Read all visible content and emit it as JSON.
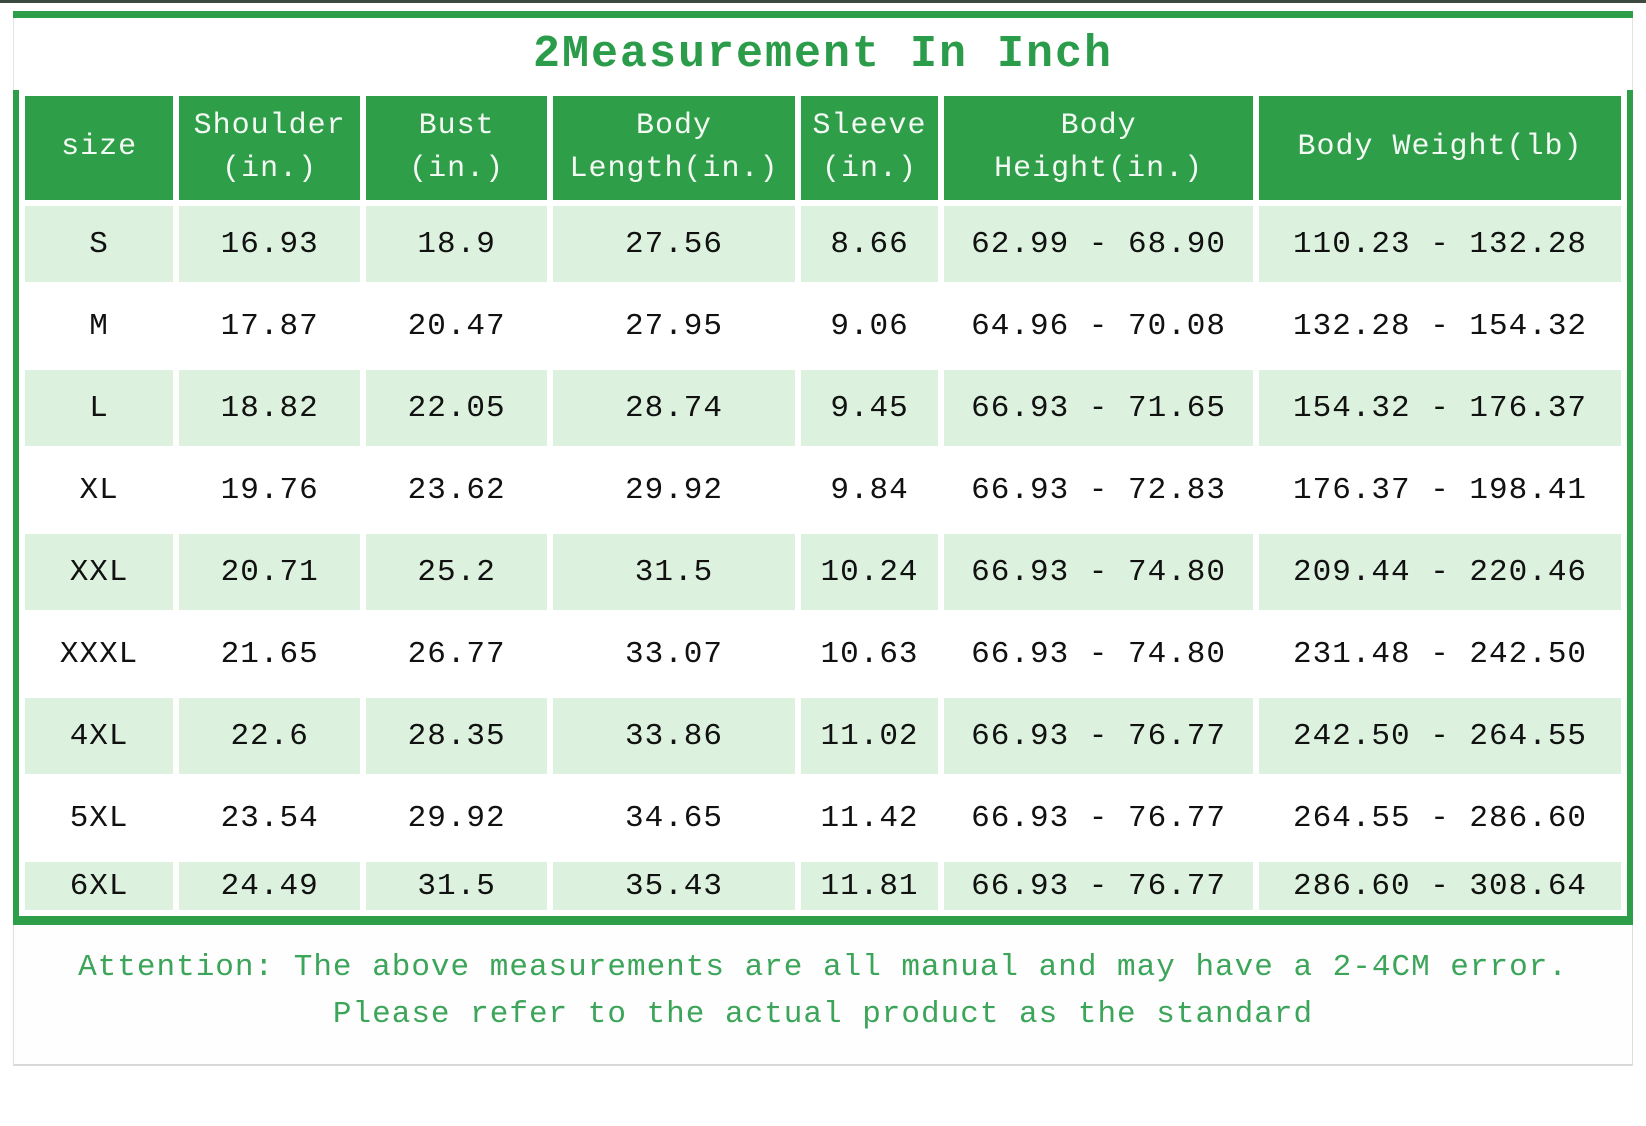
{
  "colors": {
    "green": "#2f9e48",
    "title_green": "#2b9c4a",
    "attention_green": "#3ca55a",
    "light_green": "#ddf2de"
  },
  "chart_data": {
    "type": "table",
    "title": "2Measurement In Inch",
    "columns": [
      "size",
      "Shoulder\n(in.)",
      "Bust\n(in.)",
      "Body\nLength(in.)",
      "Sleeve\n(in.)",
      "Body\nHeight(in.)",
      "Body Weight(lb)"
    ],
    "rows": [
      [
        "S",
        "16.93",
        "18.9",
        "27.56",
        "8.66",
        "62.99 - 68.90",
        "110.23 - 132.28"
      ],
      [
        "M",
        "17.87",
        "20.47",
        "27.95",
        "9.06",
        "64.96 - 70.08",
        "132.28 - 154.32"
      ],
      [
        "L",
        "18.82",
        "22.05",
        "28.74",
        "9.45",
        "66.93 - 71.65",
        "154.32 - 176.37"
      ],
      [
        "XL",
        "19.76",
        "23.62",
        "29.92",
        "9.84",
        "66.93 - 72.83",
        "176.37 - 198.41"
      ],
      [
        "XXL",
        "20.71",
        "25.2",
        "31.5",
        "10.24",
        "66.93 - 74.80",
        "209.44 - 220.46"
      ],
      [
        "XXXL",
        "21.65",
        "26.77",
        "33.07",
        "10.63",
        "66.93 - 74.80",
        "231.48 - 242.50"
      ],
      [
        "4XL",
        "22.6",
        "28.35",
        "33.86",
        "11.02",
        "66.93 - 76.77",
        "242.50 - 264.55"
      ],
      [
        "5XL",
        "23.54",
        "29.92",
        "34.65",
        "11.42",
        "66.93 - 76.77",
        "264.55 - 286.60"
      ],
      [
        "6XL",
        "24.49",
        "31.5",
        "35.43",
        "11.81",
        "66.93 - 76.77",
        "286.60 - 308.64"
      ]
    ]
  },
  "attention": {
    "line1": "Attention: The above measurements are all manual and may have a 2-4CM error.",
    "line2": "Please refer to the actual product as the standard"
  }
}
